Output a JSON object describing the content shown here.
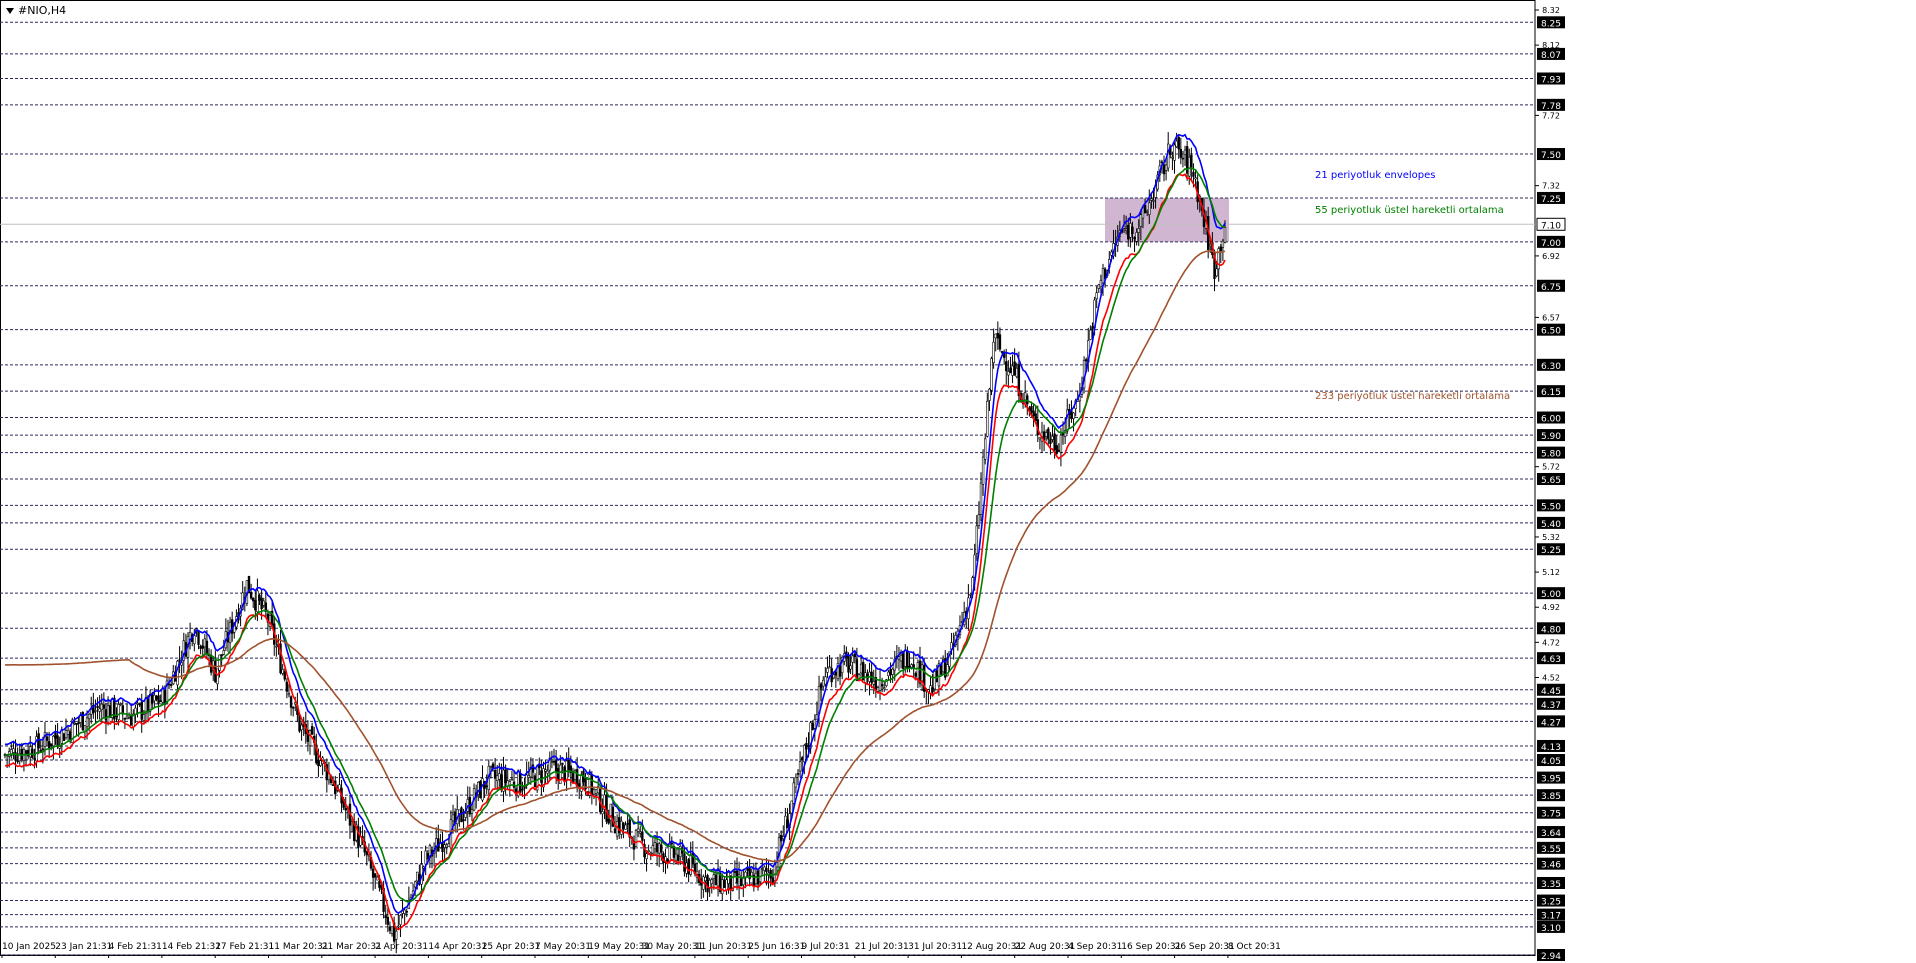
{
  "symbol": "#NIO,H4",
  "colors": {
    "grid": "#2a2a5a",
    "candle": "#000000",
    "env_upper": "#0000ff",
    "env_lower": "#ff0000",
    "ema55": "#008000",
    "ema233": "#a0522d",
    "zone_fill": "#c9a9c9",
    "label_bg": "#000000",
    "label_fg": "#ffffff"
  },
  "chart_data": {
    "type": "candlestick",
    "ylim": [
      2.94,
      8.32
    ],
    "labeled_levels": [
      "8.25",
      "8.07",
      "7.93",
      "7.78",
      "7.50",
      "7.25",
      "7.10",
      "7.00",
      "6.75",
      "6.50",
      "6.30",
      "6.15",
      "6.00",
      "5.90",
      "5.80",
      "5.65",
      "5.50",
      "5.40",
      "5.25",
      "5.00",
      "4.80",
      "4.63",
      "4.45",
      "4.37",
      "4.27",
      "4.13",
      "4.05",
      "3.95",
      "3.85",
      "3.75",
      "3.64",
      "3.55",
      "3.46",
      "3.35",
      "3.25",
      "3.17",
      "3.10",
      "2.94"
    ],
    "minor_ticks": [
      "8.32",
      "8.12",
      "7.72",
      "7.32",
      "6.92",
      "6.57",
      "5.72",
      "5.32",
      "5.12",
      "4.92",
      "4.72",
      "4.52"
    ],
    "current_price": "7.10",
    "x_labels": [
      "10 Jan 2025",
      "23 Jan 21:31",
      "4 Feb 21:31",
      "14 Feb 21:31",
      "27 Feb 21:31",
      "11 Mar 20:31",
      "21 Mar 20:31",
      "2 Apr 20:31",
      "14 Apr 20:31",
      "25 Apr 20:31",
      "7 May 20:31",
      "19 May 20:31",
      "30 May 20:31",
      "11 Jun 20:31",
      "25 Jun 16:31",
      "9 Jul 20:31",
      "21 Jul 20:31",
      "31 Jul 20:31",
      "12 Aug 20:31",
      "22 Aug 20:31",
      "4 Sep 20:31",
      "16 Sep 20:31",
      "26 Sep 20:31",
      "8 Oct 20:31"
    ],
    "zone": {
      "from": 7.0,
      "to": 7.25
    },
    "anchors": [
      [
        0,
        4.08
      ],
      [
        15,
        4.12
      ],
      [
        30,
        4.22
      ],
      [
        45,
        4.35
      ],
      [
        60,
        4.3
      ],
      [
        75,
        4.4
      ],
      [
        90,
        4.82
      ],
      [
        100,
        4.55
      ],
      [
        115,
        5.05
      ],
      [
        125,
        4.85
      ],
      [
        140,
        4.25
      ],
      [
        155,
        3.95
      ],
      [
        170,
        3.55
      ],
      [
        185,
        3.05
      ],
      [
        200,
        3.48
      ],
      [
        215,
        3.7
      ],
      [
        230,
        3.95
      ],
      [
        245,
        3.92
      ],
      [
        260,
        4.0
      ],
      [
        275,
        3.95
      ],
      [
        290,
        3.7
      ],
      [
        305,
        3.55
      ],
      [
        320,
        3.5
      ],
      [
        335,
        3.35
      ],
      [
        350,
        3.35
      ],
      [
        365,
        3.42
      ],
      [
        375,
        3.85
      ],
      [
        390,
        4.55
      ],
      [
        400,
        4.6
      ],
      [
        415,
        4.5
      ],
      [
        430,
        4.65
      ],
      [
        440,
        4.45
      ],
      [
        450,
        4.65
      ],
      [
        460,
        5.05
      ],
      [
        470,
        6.45
      ],
      [
        480,
        6.25
      ],
      [
        490,
        5.95
      ],
      [
        500,
        5.85
      ],
      [
        510,
        6.1
      ],
      [
        520,
        6.75
      ],
      [
        530,
        7.05
      ],
      [
        540,
        7.1
      ],
      [
        555,
        7.55
      ],
      [
        565,
        7.4
      ],
      [
        575,
        6.85
      ],
      [
        580,
        7.1
      ]
    ],
    "series": [
      {
        "name": "21 periyotluk envelopes",
        "color": "#0000ff",
        "kind": "env_upper"
      },
      {
        "name": "",
        "color": "#ff0000",
        "kind": "env_lower"
      },
      {
        "name": "55 periyotluk üstel hareketli ortalama",
        "color": "#008000",
        "kind": "ema55"
      },
      {
        "name": "233 periyotluk üstel hareketli ortalama",
        "color": "#a0522d",
        "kind": "ema233"
      }
    ]
  }
}
